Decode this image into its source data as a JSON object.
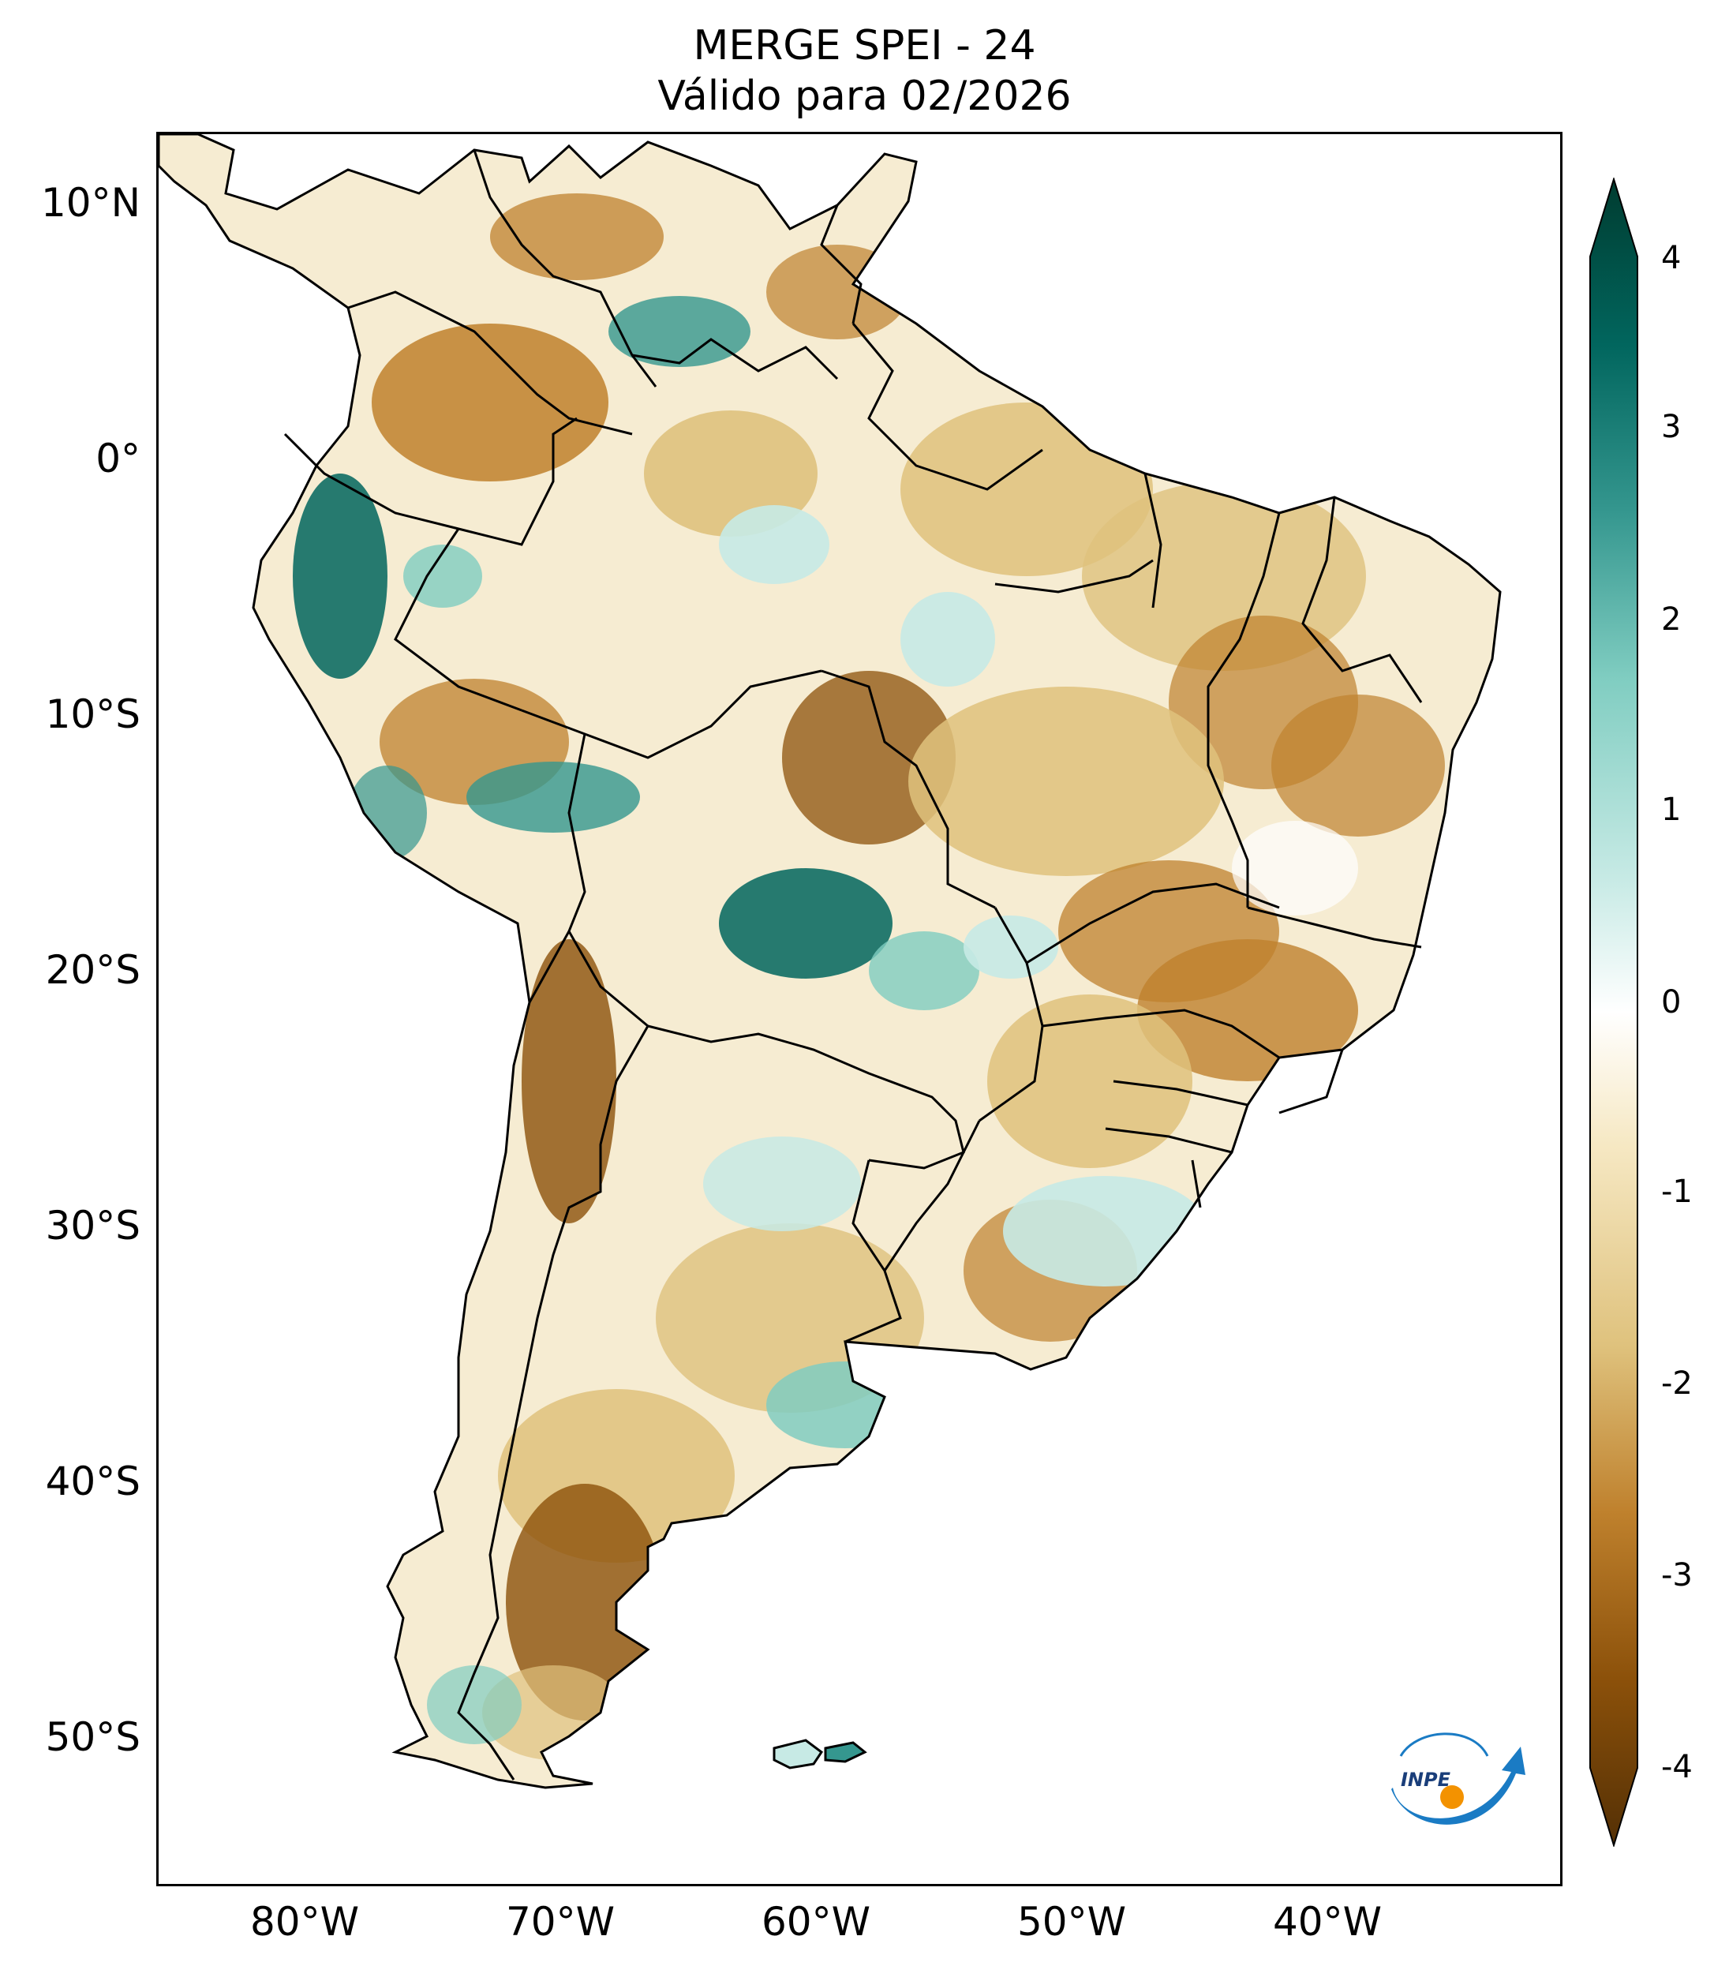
{
  "title": {
    "line1": "MERGE   SPEI - 24",
    "line2": "Válido para 02/2026"
  },
  "axes": {
    "lat_ticks": [
      "10°N",
      "0°",
      "10°S",
      "20°S",
      "30°S",
      "40°S",
      "50°S"
    ],
    "lon_ticks": [
      "80°W",
      "70°W",
      "60°W",
      "50°W",
      "40°W"
    ],
    "lon_range": [
      -85,
      -30
    ],
    "lat_range": [
      -56,
      13
    ]
  },
  "colorbar": {
    "ticks": [
      "4",
      "3",
      "2",
      "1",
      "0",
      "-1",
      "-2",
      "-3",
      "-4"
    ],
    "range": [
      -4,
      4
    ],
    "extend": "both",
    "colors": {
      "dry_extreme": "#543005",
      "dry_strong": "#8c510a",
      "dry_moderate": "#bf812d",
      "dry_mild": "#dfc27d",
      "dry_weak": "#f6e8c3",
      "neutral": "#ffffff",
      "wet_weak": "#c7eae5",
      "wet_mild": "#80cdc1",
      "wet_moderate": "#35978f",
      "wet_strong": "#01665e",
      "wet_extreme": "#003c30"
    }
  },
  "logo": {
    "text": "INPE",
    "colors": {
      "arrow": "#1a7bc4",
      "dot": "#f39200"
    }
  }
}
